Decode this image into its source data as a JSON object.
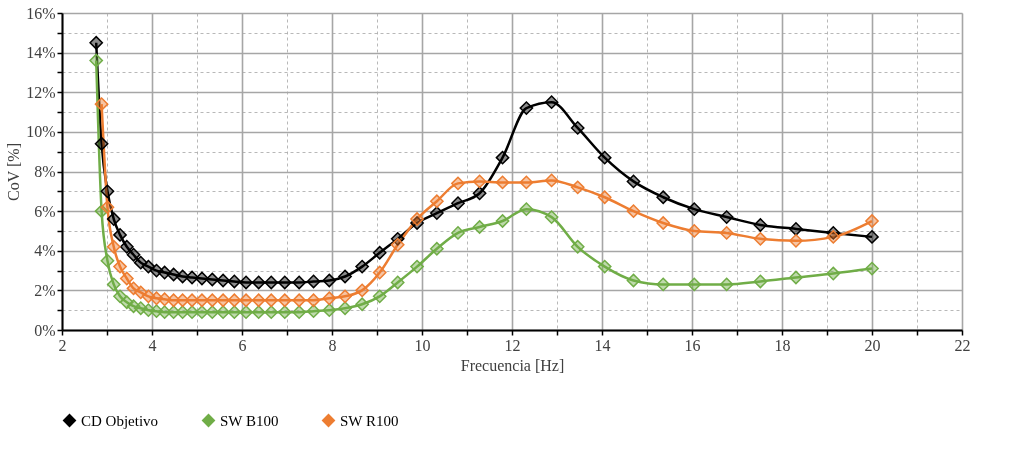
{
  "chart_data": {
    "type": "line",
    "xlabel": "Frecuencia [Hz]",
    "ylabel": "CoV [%]",
    "x": [
      2.76,
      2.88,
      3.01,
      3.15,
      3.29,
      3.44,
      3.59,
      3.75,
      3.92,
      4.1,
      4.28,
      4.48,
      4.68,
      4.89,
      5.11,
      5.34,
      5.58,
      5.83,
      6.09,
      6.37,
      6.65,
      6.95,
      7.27,
      7.59,
      7.94,
      8.29,
      8.67,
      9.06,
      9.46,
      9.89,
      10.33,
      10.8,
      11.28,
      11.79,
      12.32,
      12.88,
      13.46,
      14.06,
      14.7,
      15.36,
      16.05,
      16.77,
      17.52,
      18.31,
      19.14,
      20.0
    ],
    "series": [
      {
        "name": "CD Objetivo",
        "color": "#000000",
        "values": [
          14.5,
          9.4,
          7.0,
          5.6,
          4.8,
          4.2,
          3.8,
          3.4,
          3.2,
          3.0,
          2.9,
          2.8,
          2.7,
          2.65,
          2.6,
          2.55,
          2.5,
          2.45,
          2.4,
          2.4,
          2.4,
          2.4,
          2.4,
          2.45,
          2.5,
          2.7,
          3.2,
          3.9,
          4.6,
          5.4,
          5.9,
          6.4,
          6.9,
          8.7,
          11.2,
          11.5,
          10.2,
          8.7,
          7.5,
          6.7,
          6.1,
          5.7,
          5.3,
          5.1,
          4.9,
          4.7
        ]
      },
      {
        "name": "SW B100",
        "color": "#70ad47",
        "values": [
          13.6,
          6.0,
          3.5,
          2.3,
          1.7,
          1.4,
          1.2,
          1.1,
          1.0,
          0.95,
          0.9,
          0.9,
          0.9,
          0.9,
          0.9,
          0.9,
          0.9,
          0.9,
          0.9,
          0.9,
          0.9,
          0.9,
          0.9,
          0.95,
          1.0,
          1.1,
          1.3,
          1.7,
          2.4,
          3.2,
          4.1,
          4.9,
          5.2,
          5.5,
          6.1,
          5.7,
          4.2,
          3.2,
          2.5,
          2.3,
          2.3,
          2.3,
          2.45,
          2.65,
          2.85,
          3.1
        ]
      },
      {
        "name": "SW R100",
        "color": "#ed7d31",
        "values": [
          null,
          11.4,
          6.2,
          4.2,
          3.2,
          2.6,
          2.1,
          1.9,
          1.7,
          1.6,
          1.55,
          1.5,
          1.5,
          1.5,
          1.5,
          1.5,
          1.5,
          1.5,
          1.5,
          1.5,
          1.5,
          1.5,
          1.5,
          1.5,
          1.6,
          1.7,
          2.0,
          2.9,
          4.3,
          5.6,
          6.5,
          7.4,
          7.5,
          7.45,
          7.45,
          7.55,
          7.2,
          6.7,
          6.0,
          5.4,
          5.0,
          4.9,
          4.6,
          4.5,
          4.7,
          5.5
        ]
      }
    ],
    "xlim": [
      2,
      22
    ],
    "xticks": [
      2,
      {
        "value": 3,
        "label": null
      },
      4,
      {
        "value": 5,
        "label": null
      },
      6,
      {
        "value": 7,
        "label": null
      },
      8,
      {
        "value": 9,
        "label": null
      },
      10,
      {
        "value": 11,
        "label": null
      },
      12,
      {
        "value": 13,
        "label": null
      },
      14,
      {
        "value": 15,
        "label": null
      },
      16,
      {
        "value": 17,
        "label": null
      },
      18,
      {
        "value": 19,
        "label": null
      },
      20,
      {
        "value": 21,
        "label": null
      },
      22
    ],
    "ylim": [
      0,
      16
    ],
    "yticks": [
      {
        "value": 0,
        "label": "0%"
      },
      {
        "value": 1,
        "label": null
      },
      {
        "value": 2,
        "label": "2%"
      },
      {
        "value": 3,
        "label": null
      },
      {
        "value": 4,
        "label": "4%"
      },
      {
        "value": 5,
        "label": null
      },
      {
        "value": 6,
        "label": "6%"
      },
      {
        "value": 7,
        "label": null
      },
      {
        "value": 8,
        "label": "8%"
      },
      {
        "value": 9,
        "label": null
      },
      {
        "value": 10,
        "label": "10%"
      },
      {
        "value": 11,
        "label": null
      },
      {
        "value": 12,
        "label": "12%"
      },
      {
        "value": 13,
        "label": null
      },
      {
        "value": 14,
        "label": "14%"
      },
      {
        "value": 15,
        "label": null
      },
      {
        "value": 16,
        "label": "16%"
      }
    ],
    "grid": true,
    "legend": "bottom",
    "marker": "diamond",
    "line_style": "solid"
  }
}
